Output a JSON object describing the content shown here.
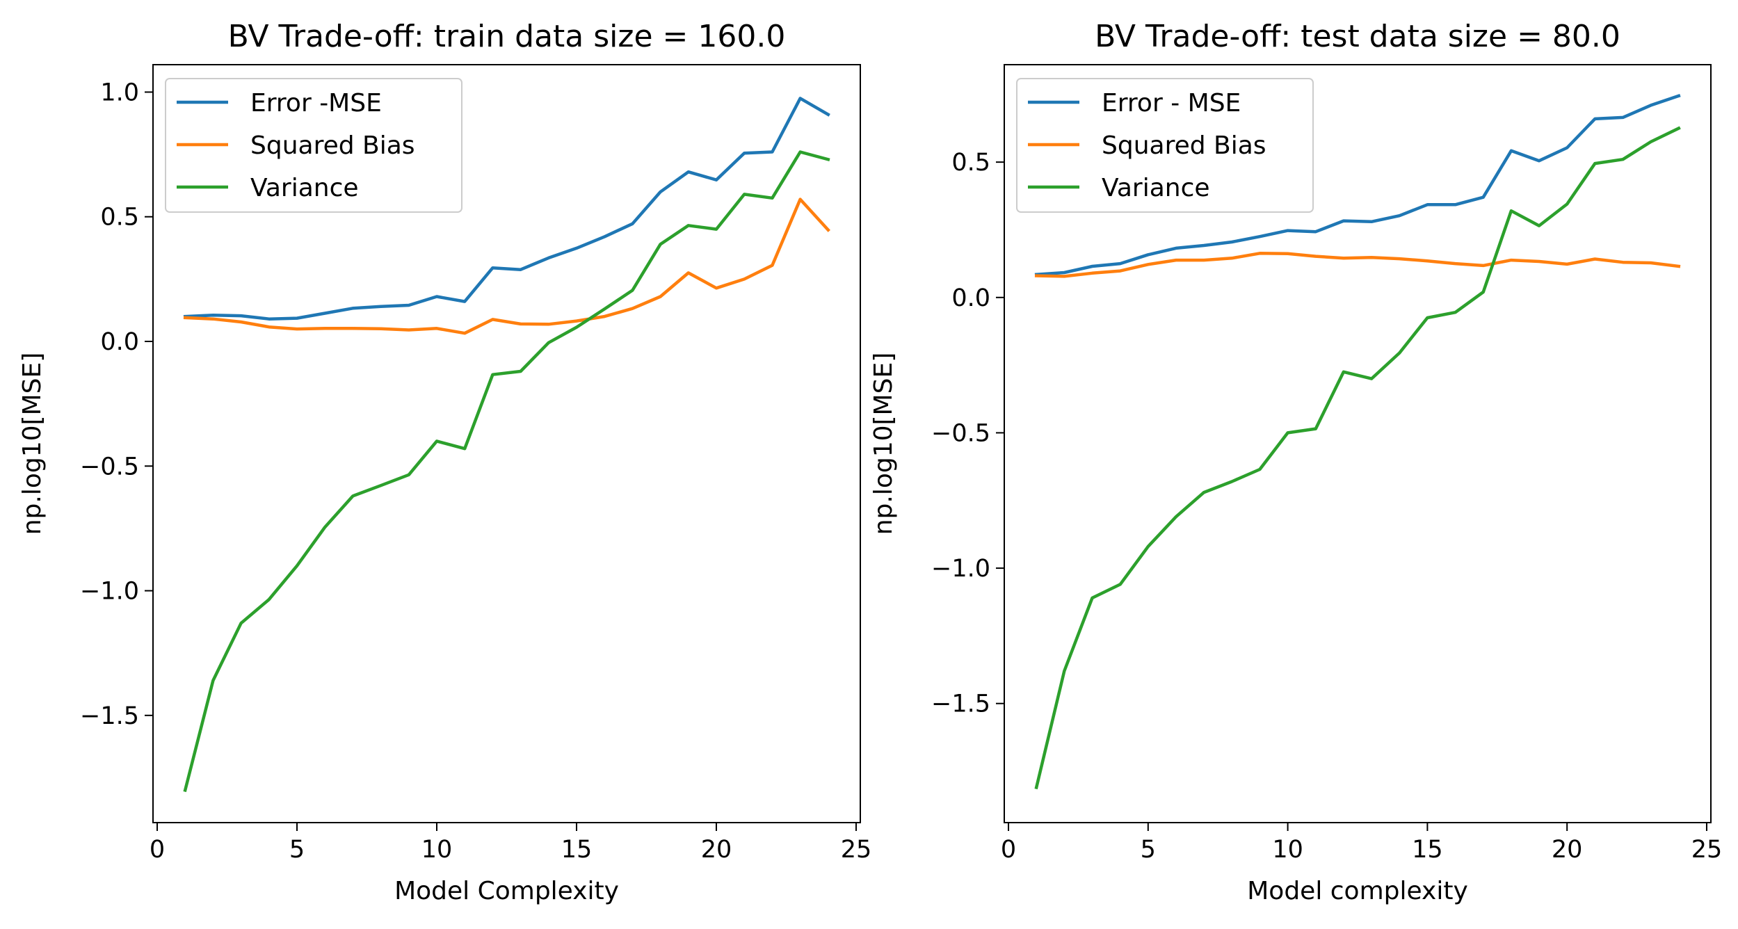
{
  "chart_data": [
    {
      "type": "line",
      "title": "BV Trade-off: train data size = 160.0",
      "xlabel": "Model Complexity",
      "ylabel": "np.log10[MSE]",
      "xlim": [
        -0.15,
        25.15
      ],
      "ylim": [
        -1.93,
        1.11
      ],
      "xticks": [
        0,
        5,
        10,
        15,
        20,
        25
      ],
      "xtick_labels": [
        "0",
        "5",
        "10",
        "15",
        "20",
        "25"
      ],
      "yticks": [
        -1.5,
        -1.0,
        -0.5,
        0.0,
        0.5,
        1.0
      ],
      "ytick_labels": [
        "−1.5",
        "−1.0",
        "−0.5",
        "0.0",
        "0.5",
        "1.0"
      ],
      "grid": false,
      "legend_position": "upper-left",
      "x": [
        1,
        2,
        3,
        4,
        5,
        6,
        7,
        8,
        9,
        10,
        11,
        12,
        13,
        14,
        15,
        16,
        17,
        18,
        19,
        20,
        21,
        22,
        23,
        24
      ],
      "series": [
        {
          "name": "Error -MSE",
          "color": "#1f77b4",
          "values": [
            0.1,
            0.105,
            0.103,
            0.09,
            0.093,
            0.113,
            0.133,
            0.14,
            0.145,
            0.18,
            0.16,
            0.295,
            0.288,
            0.335,
            0.374,
            0.42,
            0.472,
            0.6,
            0.68,
            0.648,
            0.755,
            0.76,
            0.975,
            0.91
          ]
        },
        {
          "name": "Squared Bias",
          "color": "#ff7f0e",
          "values": [
            0.095,
            0.09,
            0.078,
            0.058,
            0.05,
            0.052,
            0.052,
            0.051,
            0.046,
            0.052,
            0.033,
            0.088,
            0.07,
            0.069,
            0.082,
            0.1,
            0.132,
            0.18,
            0.275,
            0.214,
            0.25,
            0.305,
            0.57,
            0.447
          ]
        },
        {
          "name": "Variance",
          "color": "#2ca02c",
          "values": [
            -1.8,
            -1.36,
            -1.13,
            -1.035,
            -0.9,
            -0.745,
            -0.62,
            -0.578,
            -0.535,
            -0.4,
            -0.43,
            -0.133,
            -0.12,
            -0.005,
            0.057,
            0.13,
            0.205,
            0.39,
            0.465,
            0.45,
            0.59,
            0.575,
            0.76,
            0.73
          ]
        }
      ]
    },
    {
      "type": "line",
      "title": "BV Trade-off: test data size = 80.0",
      "xlabel": "Model complexity",
      "ylabel": "np.log10[MSE]",
      "xlim": [
        -0.15,
        25.15
      ],
      "ylim": [
        -1.94,
        0.86
      ],
      "xticks": [
        0,
        5,
        10,
        15,
        20,
        25
      ],
      "xtick_labels": [
        "0",
        "5",
        "10",
        "15",
        "20",
        "25"
      ],
      "yticks": [
        -1.5,
        -1.0,
        -0.5,
        0.0,
        0.5
      ],
      "ytick_labels": [
        "−1.5",
        "−1.0",
        "−0.5",
        "0.0",
        "0.5"
      ],
      "grid": false,
      "legend_position": "upper-left",
      "x": [
        1,
        2,
        3,
        4,
        5,
        6,
        7,
        8,
        9,
        10,
        11,
        12,
        13,
        14,
        15,
        16,
        17,
        18,
        19,
        20,
        21,
        22,
        23,
        24
      ],
      "series": [
        {
          "name": "Error - MSE",
          "color": "#1f77b4",
          "values": [
            0.085,
            0.092,
            0.115,
            0.125,
            0.158,
            0.182,
            0.192,
            0.205,
            0.225,
            0.247,
            0.243,
            0.283,
            0.28,
            0.302,
            0.343,
            0.343,
            0.37,
            0.542,
            0.505,
            0.553,
            0.66,
            0.665,
            0.71,
            0.745
          ]
        },
        {
          "name": "Squared Bias",
          "color": "#ff7f0e",
          "values": [
            0.08,
            0.078,
            0.09,
            0.098,
            0.122,
            0.138,
            0.138,
            0.145,
            0.163,
            0.162,
            0.152,
            0.145,
            0.148,
            0.143,
            0.135,
            0.125,
            0.118,
            0.138,
            0.133,
            0.123,
            0.142,
            0.13,
            0.128,
            0.115
          ]
        },
        {
          "name": "Variance",
          "color": "#2ca02c",
          "values": [
            -1.81,
            -1.38,
            -1.11,
            -1.06,
            -0.92,
            -0.81,
            -0.72,
            -0.68,
            -0.635,
            -0.5,
            -0.485,
            -0.275,
            -0.3,
            -0.205,
            -0.075,
            -0.055,
            0.02,
            0.32,
            0.265,
            0.345,
            0.495,
            0.51,
            0.575,
            0.625
          ]
        }
      ]
    }
  ]
}
